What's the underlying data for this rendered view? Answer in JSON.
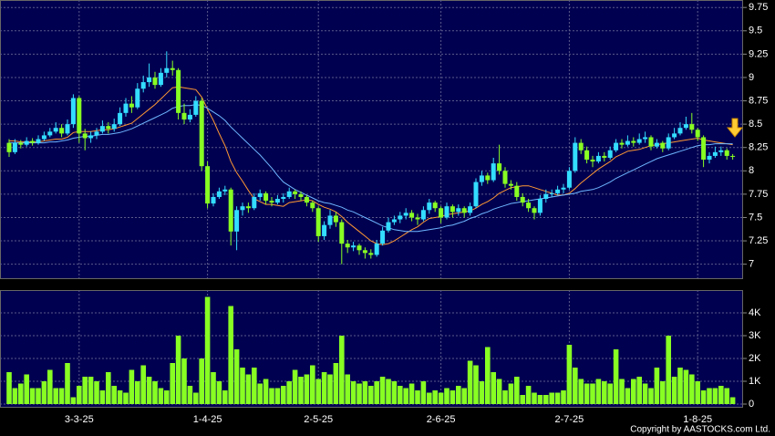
{
  "chart_data": {
    "type": "candlestick",
    "categories": [
      null,
      null,
      null,
      null,
      null,
      null,
      null,
      null,
      null,
      null,
      null,
      null,
      "3-3-25",
      null,
      null,
      null,
      null,
      null,
      null,
      null,
      null,
      null,
      null,
      null,
      null,
      null,
      null,
      null,
      null,
      null,
      null,
      null,
      null,
      null,
      "1-4-25",
      null,
      null,
      null,
      null,
      null,
      null,
      null,
      null,
      null,
      null,
      null,
      null,
      null,
      null,
      null,
      null,
      null,
      null,
      "2-5-25",
      null,
      null,
      null,
      null,
      null,
      null,
      null,
      null,
      null,
      null,
      null,
      null,
      null,
      null,
      null,
      null,
      null,
      null,
      null,
      null,
      "2-6-25",
      null,
      null,
      null,
      null,
      null,
      null,
      null,
      null,
      null,
      null,
      null,
      null,
      null,
      null,
      null,
      null,
      null,
      null,
      null,
      null,
      null,
      "2-7-25",
      null,
      null,
      null,
      null,
      null,
      null,
      null,
      null,
      null,
      null,
      null,
      null,
      null,
      null,
      null,
      null,
      null,
      null,
      null,
      null,
      null,
      "1-8-25",
      null,
      null,
      null,
      null,
      null,
      null
    ],
    "open": [
      8.3,
      8.2,
      8.3,
      8.28,
      8.32,
      8.3,
      8.34,
      8.38,
      8.42,
      8.46,
      8.4,
      8.5,
      8.78,
      8.4,
      8.35,
      8.38,
      8.42,
      8.48,
      8.45,
      8.5,
      8.62,
      8.72,
      8.68,
      8.88,
      8.95,
      9.0,
      8.92,
      9.05,
      9.1,
      9.08,
      8.62,
      8.55,
      8.6,
      8.75,
      8.05,
      7.65,
      7.72,
      7.78,
      7.8,
      7.35,
      7.58,
      7.62,
      7.6,
      7.72,
      7.76,
      7.68,
      7.66,
      7.7,
      7.72,
      7.78,
      7.75,
      7.72,
      7.66,
      7.6,
      7.3,
      7.42,
      7.52,
      7.45,
      7.22,
      7.18,
      7.2,
      7.15,
      7.12,
      7.1,
      7.22,
      7.36,
      7.45,
      7.48,
      7.52,
      7.55,
      7.5,
      7.48,
      7.58,
      7.66,
      7.6,
      7.5,
      7.62,
      7.56,
      7.6,
      7.55,
      7.62,
      7.88,
      7.95,
      7.9,
      8.08,
      8.0,
      7.86,
      7.84,
      7.72,
      7.66,
      7.6,
      7.55,
      7.7,
      7.75,
      7.76,
      7.8,
      7.82,
      8.0,
      8.3,
      8.22,
      8.12,
      8.1,
      8.16,
      8.14,
      8.22,
      8.3,
      8.28,
      8.32,
      8.3,
      8.34,
      8.36,
      8.26,
      8.3,
      8.24,
      8.36,
      8.4,
      8.46,
      8.5,
      8.44,
      8.36,
      8.12,
      8.16,
      8.2,
      8.22,
      8.16
    ],
    "high": [
      8.34,
      8.34,
      8.33,
      8.36,
      8.35,
      8.38,
      8.42,
      8.46,
      8.52,
      8.5,
      8.55,
      8.82,
      8.8,
      8.45,
      8.42,
      8.46,
      8.54,
      8.52,
      8.56,
      8.68,
      8.78,
      8.8,
      8.94,
      9.02,
      9.15,
      9.06,
      9.1,
      9.28,
      9.18,
      9.1,
      8.72,
      8.66,
      8.8,
      8.78,
      8.1,
      7.76,
      7.82,
      7.84,
      7.82,
      7.62,
      7.66,
      7.66,
      7.76,
      7.8,
      7.78,
      7.72,
      7.74,
      7.76,
      7.82,
      7.8,
      7.78,
      7.74,
      7.68,
      7.62,
      7.46,
      7.58,
      7.56,
      7.48,
      7.26,
      7.24,
      7.22,
      7.18,
      7.16,
      7.26,
      7.4,
      7.5,
      7.52,
      7.56,
      7.6,
      7.58,
      7.54,
      7.62,
      7.7,
      7.68,
      7.62,
      7.66,
      7.64,
      7.64,
      7.62,
      7.66,
      7.92,
      8.0,
      7.98,
      8.14,
      8.28,
      8.04,
      7.9,
      7.88,
      7.76,
      7.7,
      7.62,
      7.74,
      7.8,
      7.8,
      7.84,
      7.86,
      8.04,
      8.36,
      8.34,
      8.26,
      8.16,
      8.2,
      8.2,
      8.26,
      8.34,
      8.34,
      8.38,
      8.36,
      8.4,
      8.42,
      8.38,
      8.34,
      8.32,
      8.4,
      8.46,
      8.52,
      8.58,
      8.62,
      8.46,
      8.38,
      8.2,
      8.26,
      8.26,
      8.24,
      8.18
    ],
    "low": [
      8.15,
      8.18,
      8.24,
      8.26,
      8.27,
      8.28,
      8.32,
      8.36,
      8.4,
      8.36,
      8.38,
      8.46,
      8.3,
      8.22,
      8.3,
      8.34,
      8.4,
      8.4,
      8.42,
      8.48,
      8.58,
      8.62,
      8.66,
      8.84,
      8.9,
      8.88,
      8.9,
      9.0,
      9.02,
      8.55,
      8.5,
      8.52,
      8.58,
      8.0,
      7.6,
      7.62,
      7.7,
      7.74,
      7.2,
      7.15,
      7.52,
      7.55,
      7.58,
      7.68,
      7.64,
      7.62,
      7.64,
      7.66,
      7.7,
      7.7,
      7.68,
      7.62,
      7.56,
      7.24,
      7.26,
      7.38,
      7.4,
      7.0,
      7.12,
      7.14,
      7.1,
      7.06,
      7.06,
      7.08,
      7.2,
      7.34,
      7.42,
      7.44,
      7.48,
      7.46,
      7.42,
      7.46,
      7.54,
      7.56,
      7.44,
      7.48,
      7.5,
      7.52,
      7.5,
      7.52,
      7.6,
      7.84,
      7.86,
      7.88,
      7.96,
      7.82,
      7.8,
      7.68,
      7.62,
      7.56,
      7.48,
      7.52,
      7.66,
      7.72,
      7.74,
      7.76,
      7.8,
      7.98,
      8.18,
      8.08,
      8.04,
      8.08,
      8.1,
      8.12,
      8.2,
      8.24,
      8.26,
      8.26,
      8.28,
      8.3,
      8.22,
      8.24,
      8.2,
      8.22,
      8.34,
      8.38,
      8.44,
      8.4,
      8.32,
      8.04,
      8.08,
      8.14,
      8.16,
      8.12,
      8.12
    ],
    "close": [
      8.2,
      8.3,
      8.28,
      8.32,
      8.3,
      8.34,
      8.38,
      8.42,
      8.46,
      8.4,
      8.5,
      8.78,
      8.4,
      8.35,
      8.38,
      8.42,
      8.48,
      8.45,
      8.5,
      8.62,
      8.72,
      8.68,
      8.88,
      8.95,
      9.0,
      8.92,
      9.05,
      9.1,
      9.08,
      8.62,
      8.55,
      8.6,
      8.75,
      8.05,
      7.65,
      7.72,
      7.78,
      7.8,
      7.35,
      7.58,
      7.62,
      7.6,
      7.72,
      7.76,
      7.68,
      7.66,
      7.7,
      7.72,
      7.78,
      7.75,
      7.72,
      7.66,
      7.6,
      7.3,
      7.42,
      7.52,
      7.45,
      7.22,
      7.18,
      7.2,
      7.15,
      7.12,
      7.1,
      7.22,
      7.36,
      7.45,
      7.48,
      7.52,
      7.55,
      7.5,
      7.48,
      7.58,
      7.66,
      7.6,
      7.5,
      7.62,
      7.56,
      7.6,
      7.55,
      7.62,
      7.88,
      7.95,
      7.9,
      8.08,
      8.0,
      7.86,
      7.84,
      7.72,
      7.66,
      7.6,
      7.55,
      7.7,
      7.75,
      7.76,
      7.8,
      7.82,
      8.0,
      8.3,
      8.22,
      8.12,
      8.1,
      8.16,
      8.14,
      8.22,
      8.3,
      8.28,
      8.32,
      8.3,
      8.34,
      8.36,
      8.26,
      8.3,
      8.24,
      8.36,
      8.4,
      8.46,
      8.5,
      8.44,
      8.36,
      8.12,
      8.16,
      8.2,
      8.22,
      8.16,
      8.15
    ],
    "up_color": "#33ddff",
    "down_color": "#88ff22",
    "ylim": [
      6.85,
      9.83
    ],
    "yticks": [
      7,
      7.25,
      7.5,
      7.75,
      8,
      8.25,
      8.5,
      8.75,
      9,
      9.25,
      9.5,
      9.75
    ],
    "grid": true,
    "moving_averages": [
      {
        "color": "#ff9933",
        "values": [
          8.32,
          8.32,
          8.31,
          8.31,
          8.31,
          8.31,
          8.32,
          8.33,
          8.34,
          8.34,
          8.36,
          8.41,
          8.42,
          8.42,
          8.42,
          8.43,
          8.44,
          8.44,
          8.45,
          8.47,
          8.49,
          8.51,
          8.56,
          8.61,
          8.66,
          8.71,
          8.77,
          8.83,
          8.89,
          8.9,
          8.89,
          8.88,
          8.87,
          8.79,
          8.66,
          8.54,
          8.4,
          8.27,
          8.1,
          7.98,
          7.89,
          7.79,
          7.7,
          7.67,
          7.64,
          7.64,
          7.63,
          7.62,
          7.66,
          7.67,
          7.68,
          7.69,
          7.68,
          7.64,
          7.61,
          7.59,
          7.56,
          7.51,
          7.45,
          7.4,
          7.35,
          7.3,
          7.25,
          7.22,
          7.21,
          7.22,
          7.25,
          7.29,
          7.33,
          7.37,
          7.4,
          7.45,
          7.49,
          7.5,
          7.51,
          7.53,
          7.54,
          7.55,
          7.56,
          7.57,
          7.6,
          7.64,
          7.67,
          7.71,
          7.76,
          7.79,
          7.82,
          7.83,
          7.84,
          7.84,
          7.82,
          7.8,
          7.78,
          7.76,
          7.74,
          7.74,
          7.76,
          7.81,
          7.87,
          7.92,
          7.97,
          8.02,
          8.06,
          8.1,
          8.15,
          8.18,
          8.21,
          8.22,
          8.23,
          8.25,
          8.27,
          8.28,
          8.29,
          8.3,
          8.31,
          8.32,
          8.33,
          8.34,
          8.35,
          8.33,
          8.32,
          8.31,
          8.3,
          8.29,
          8.28
        ]
      },
      {
        "color": "#6fb7ff",
        "values": [
          8.3,
          8.3,
          8.3,
          8.3,
          8.3,
          8.3,
          8.3,
          8.31,
          8.31,
          8.32,
          8.33,
          8.35,
          8.36,
          8.37,
          8.37,
          8.38,
          8.39,
          8.39,
          8.4,
          8.41,
          8.43,
          8.45,
          8.48,
          8.51,
          8.54,
          8.57,
          8.6,
          8.63,
          8.67,
          8.69,
          8.7,
          8.7,
          8.71,
          8.7,
          8.67,
          8.63,
          8.59,
          8.54,
          8.47,
          8.41,
          8.35,
          8.29,
          8.23,
          8.17,
          8.1,
          8.03,
          7.95,
          7.88,
          7.84,
          7.8,
          7.77,
          7.74,
          7.71,
          7.68,
          7.66,
          7.65,
          7.63,
          7.61,
          7.58,
          7.56,
          7.53,
          7.5,
          7.47,
          7.44,
          7.41,
          7.39,
          7.37,
          7.36,
          7.35,
          7.35,
          7.35,
          7.36,
          7.37,
          7.38,
          7.39,
          7.41,
          7.42,
          7.44,
          7.46,
          7.49,
          7.51,
          7.54,
          7.56,
          7.59,
          7.61,
          7.63,
          7.65,
          7.66,
          7.67,
          7.68,
          7.69,
          7.7,
          7.71,
          7.72,
          7.73,
          7.74,
          7.75,
          7.76,
          7.78,
          7.79,
          7.8,
          7.82,
          7.85,
          7.88,
          7.92,
          7.95,
          7.98,
          8.01,
          8.04,
          8.07,
          8.1,
          8.13,
          8.15,
          8.17,
          8.19,
          8.21,
          8.23,
          8.25,
          8.27,
          8.28,
          8.28,
          8.29,
          8.29,
          8.29,
          8.29
        ]
      }
    ],
    "volume": {
      "type": "bar",
      "color": "#88ff22",
      "values": [
        1400,
        700,
        900,
        1300,
        700,
        700,
        1000,
        1500,
        700,
        700,
        1800,
        300,
        800,
        1200,
        1200,
        1000,
        600,
        1400,
        800,
        600,
        500,
        1500,
        1000,
        1700,
        1200,
        1000,
        700,
        600,
        1800,
        3000,
        2000,
        800,
        500,
        2000,
        4700,
        1400,
        1000,
        600,
        4300,
        2400,
        1600,
        1300,
        1600,
        900,
        1100,
        700,
        700,
        800,
        1000,
        1500,
        1200,
        1300,
        1700,
        1100,
        1400,
        1300,
        1800,
        3000,
        1300,
        1000,
        900,
        1000,
        800,
        1000,
        1200,
        1100,
        1000,
        800,
        700,
        900,
        600,
        1000,
        500,
        600,
        500,
        700,
        600,
        800,
        700,
        1900,
        1700,
        1000,
        2500,
        1400,
        1100,
        600,
        900,
        1200,
        400,
        800,
        500,
        400,
        400,
        500,
        500,
        600,
        2600,
        1600,
        1100,
        900,
        900,
        1100,
        1000,
        900,
        2400,
        1100,
        700,
        1100,
        1200,
        900,
        700,
        1600,
        1000,
        3000,
        1200,
        1600,
        1500,
        1300,
        1000,
        600,
        700,
        700,
        800,
        700,
        300
      ],
      "ylim": [
        -120,
        5000
      ],
      "yticks": [
        0,
        {
          "value": 1000,
          "label": "1K"
        },
        {
          "value": 2000,
          "label": "2K"
        },
        {
          "value": 3000,
          "label": "3K"
        },
        {
          "value": 4000,
          "label": "4K"
        }
      ]
    }
  },
  "copyright": "Copyright by AASTOCKS.com Ltd."
}
